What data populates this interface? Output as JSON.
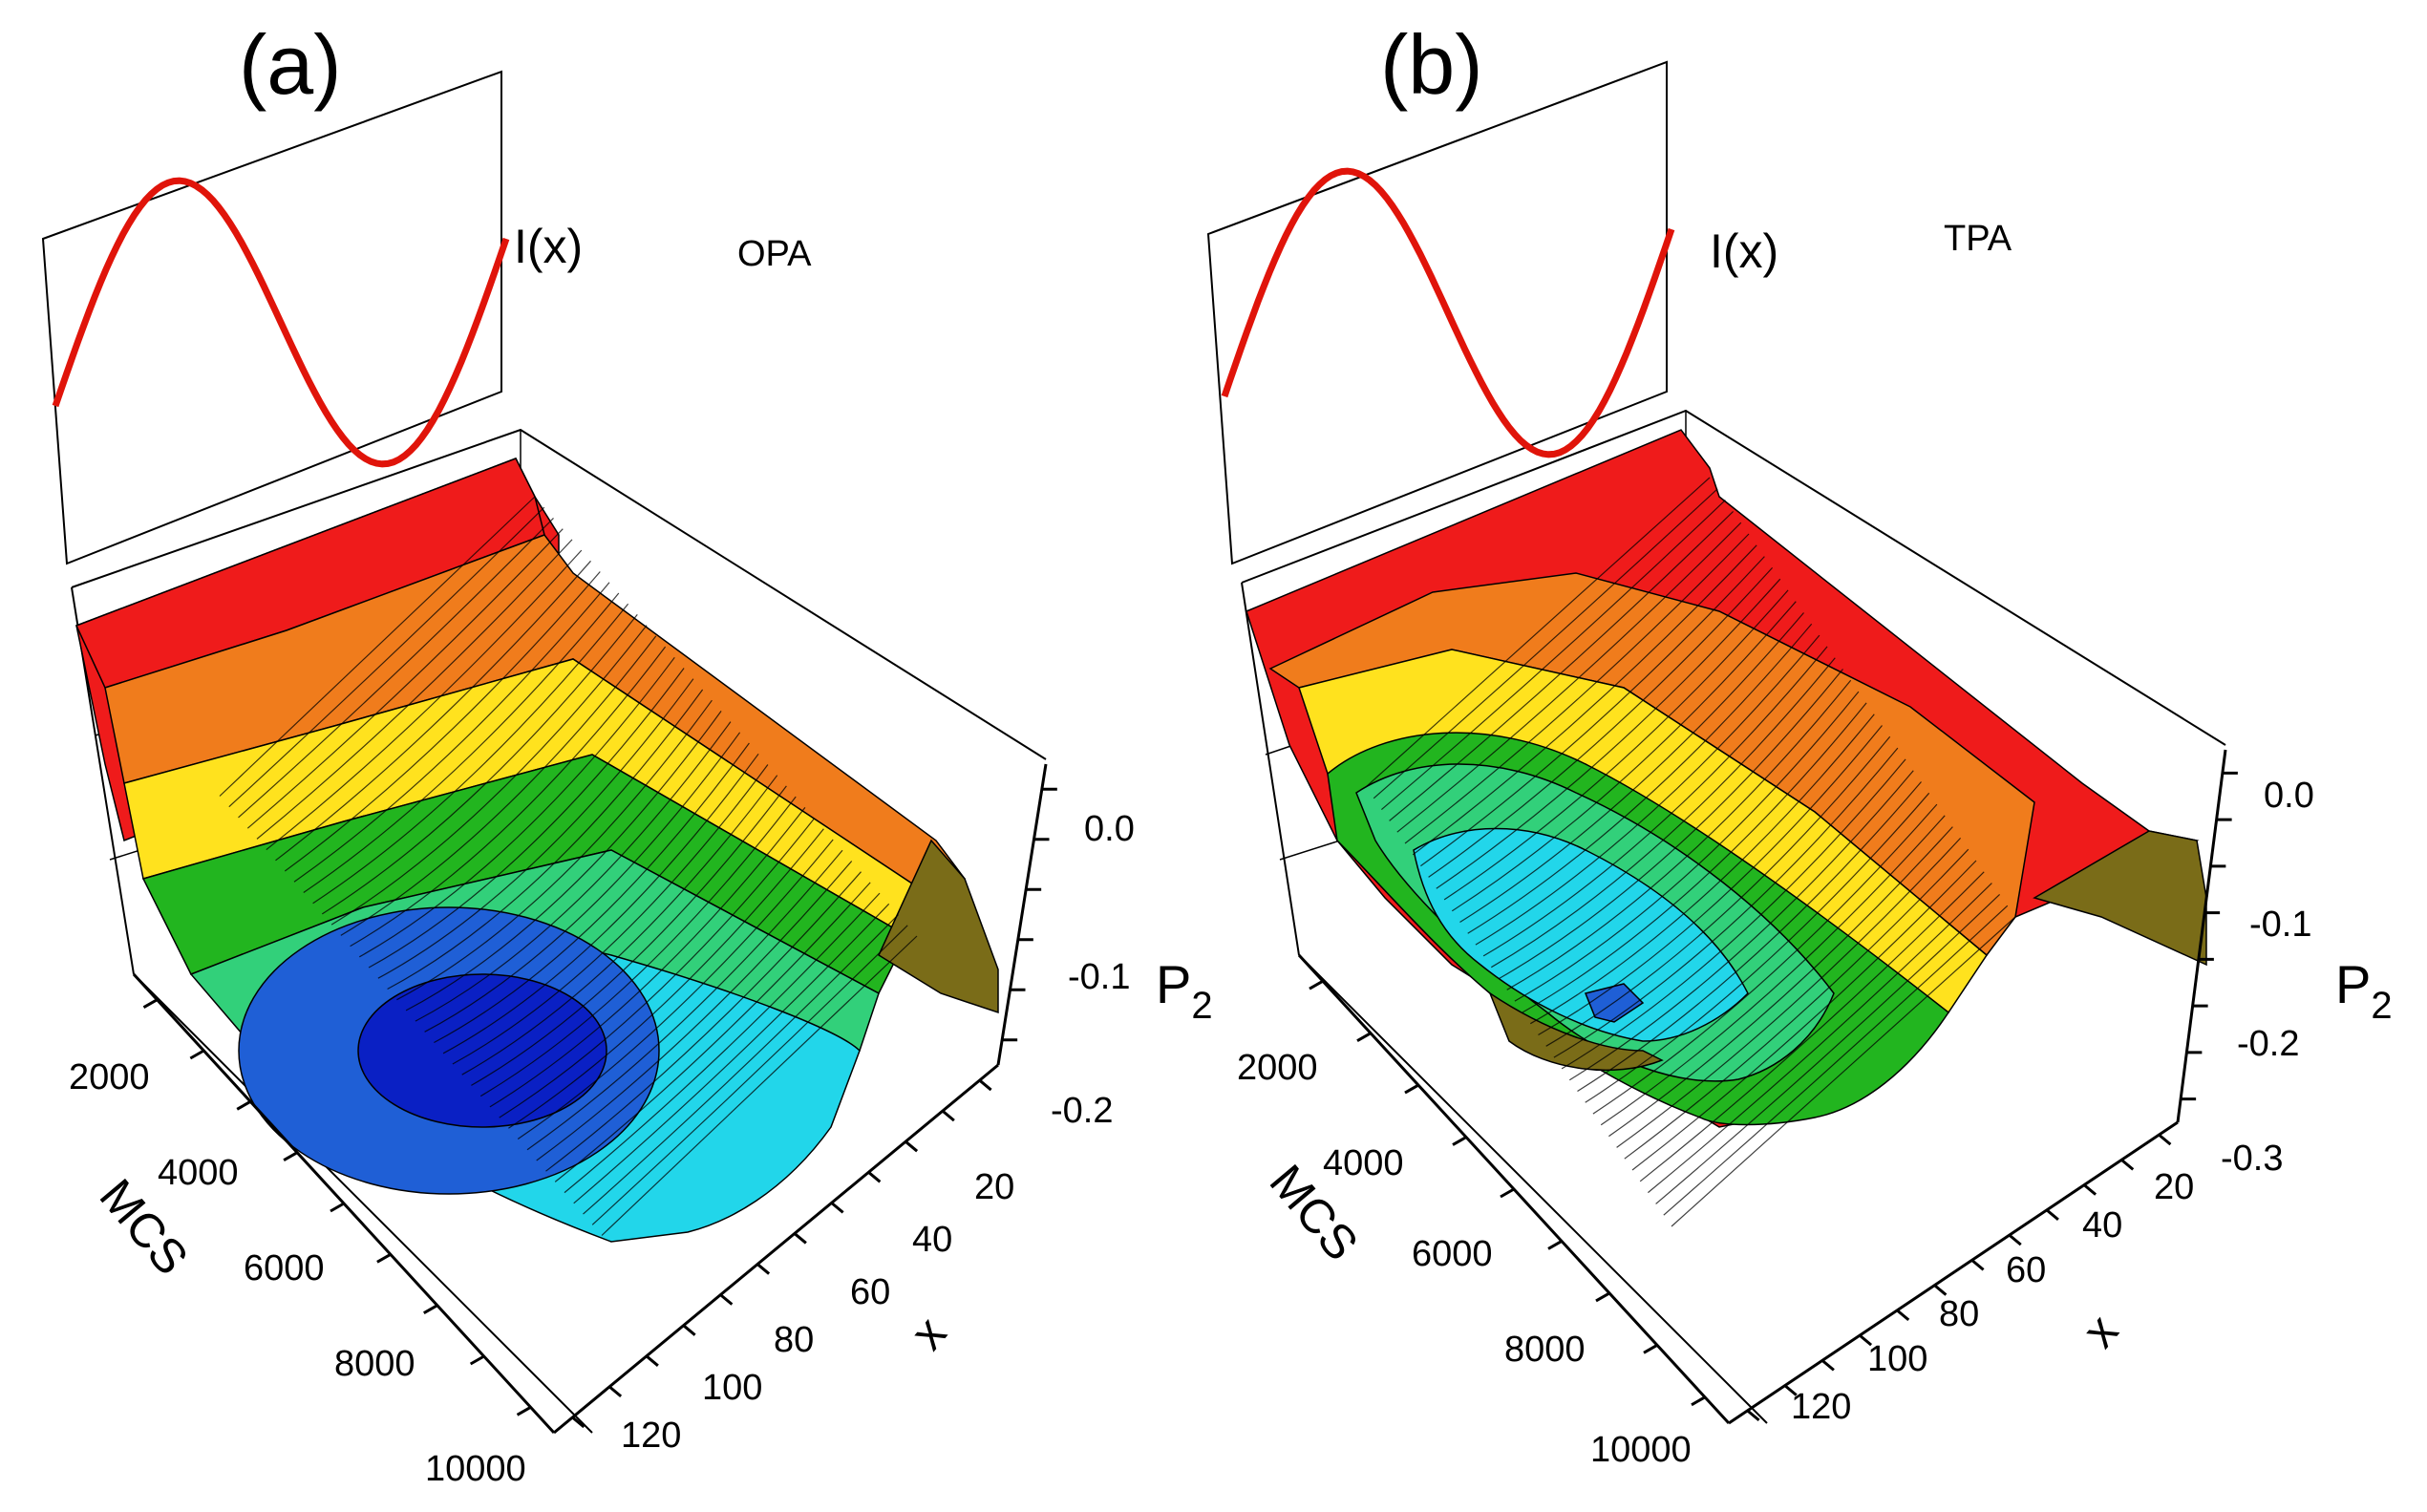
{
  "figure": {
    "panels": [
      {
        "label": "(a)",
        "annotation": "OPA",
        "intensity_label": "I(x)",
        "z_label": "P",
        "z_subscript": "2",
        "x_label": "x",
        "mcs_label": "MCS",
        "x_ticks": [
          "20",
          "40",
          "60",
          "80",
          "100",
          "120"
        ],
        "mcs_ticks": [
          "2000",
          "4000",
          "6000",
          "8000",
          "10000"
        ],
        "z_ticks": [
          "0.0",
          "-0.1",
          "-0.2"
        ]
      },
      {
        "label": "(b)",
        "annotation": "TPA",
        "intensity_label": "I(x)",
        "z_label": "P",
        "z_subscript": "2",
        "x_label": "x",
        "mcs_label": "MCS",
        "x_ticks": [
          "20",
          "40",
          "60",
          "80",
          "100",
          "120"
        ],
        "mcs_ticks": [
          "2000",
          "4000",
          "6000",
          "8000",
          "10000"
        ],
        "z_ticks": [
          "0.0",
          "-0.1",
          "-0.2",
          "-0.3"
        ]
      }
    ]
  },
  "chart_data": [
    {
      "type": "surface",
      "title": "(a)",
      "annotation": "OPA",
      "xlabel": "x",
      "ylabel": "MCS",
      "zlabel": "P2",
      "x_range": [
        0,
        128
      ],
      "mcs_range": [
        0,
        10000
      ],
      "z_range": [
        -0.22,
        0.02
      ],
      "z_tick_values": [
        0.0,
        -0.1,
        -0.2
      ],
      "intensity_profile": {
        "label": "I(x)",
        "function": "sin",
        "periods": 1
      },
      "surface": {
        "minimum_p2": -0.2,
        "minimum_at_x": 96,
        "minimum_at_mcs": 6000,
        "edge_p2": 0.0
      }
    },
    {
      "type": "surface",
      "title": "(b)",
      "annotation": "TPA",
      "xlabel": "x",
      "ylabel": "MCS",
      "zlabel": "P2",
      "x_range": [
        0,
        128
      ],
      "mcs_range": [
        0,
        10000
      ],
      "z_range": [
        -0.32,
        0.02
      ],
      "z_tick_values": [
        0.0,
        -0.1,
        -0.2,
        -0.3
      ],
      "intensity_profile": {
        "label": "I(x)",
        "function": "sin",
        "periods": 1
      },
      "surface": {
        "minimum_p2": -0.3,
        "minimum_at_x": 96,
        "minimum_at_mcs": 6000,
        "edge_p2": 0.0
      }
    }
  ]
}
